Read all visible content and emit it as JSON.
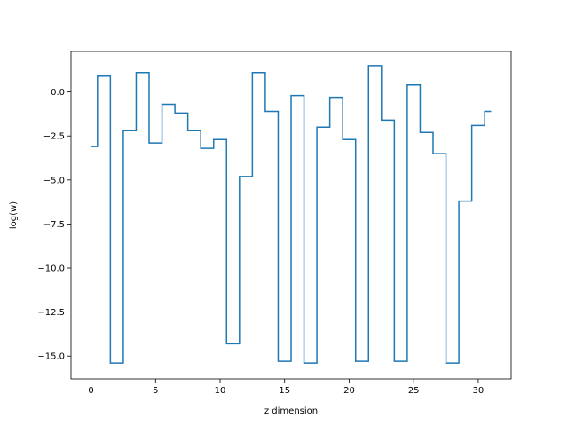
{
  "chart_data": {
    "type": "line",
    "drawstyle": "steps-mid",
    "xlabel": "z dimension",
    "ylabel": "log(w)",
    "xlim": [
      -1.55,
      32.55
    ],
    "ylim": [
      -16.3,
      2.3
    ],
    "x_ticks": [
      0,
      5,
      10,
      15,
      20,
      25,
      30
    ],
    "y_ticks": [
      0.0,
      -2.5,
      -5.0,
      -7.5,
      -10.0,
      -12.5,
      -15.0
    ],
    "x_tick_labels": [
      "0",
      "5",
      "10",
      "15",
      "20",
      "25",
      "30"
    ],
    "y_tick_labels": [
      "0.0",
      "−2.5",
      "−5.0",
      "−7.5",
      "−10.0",
      "−12.5",
      "−15.0"
    ],
    "grid": false,
    "color": "#1f77b4",
    "x": [
      0,
      1,
      2,
      3,
      4,
      5,
      6,
      7,
      8,
      9,
      10,
      11,
      12,
      13,
      14,
      15,
      16,
      17,
      18,
      19,
      20,
      21,
      22,
      23,
      24,
      25,
      26,
      27,
      28,
      29,
      30,
      31
    ],
    "values": [
      -3.1,
      0.9,
      -15.4,
      -2.2,
      1.1,
      -2.9,
      -0.7,
      -1.2,
      -2.2,
      -3.2,
      -2.7,
      -14.3,
      -4.8,
      1.1,
      -1.1,
      -15.3,
      -0.2,
      -15.4,
      -2.0,
      -0.3,
      -2.7,
      -15.3,
      1.5,
      -1.6,
      -15.3,
      0.4,
      -2.3,
      -3.5,
      -15.4,
      -6.2,
      -1.9,
      -1.1
    ]
  }
}
